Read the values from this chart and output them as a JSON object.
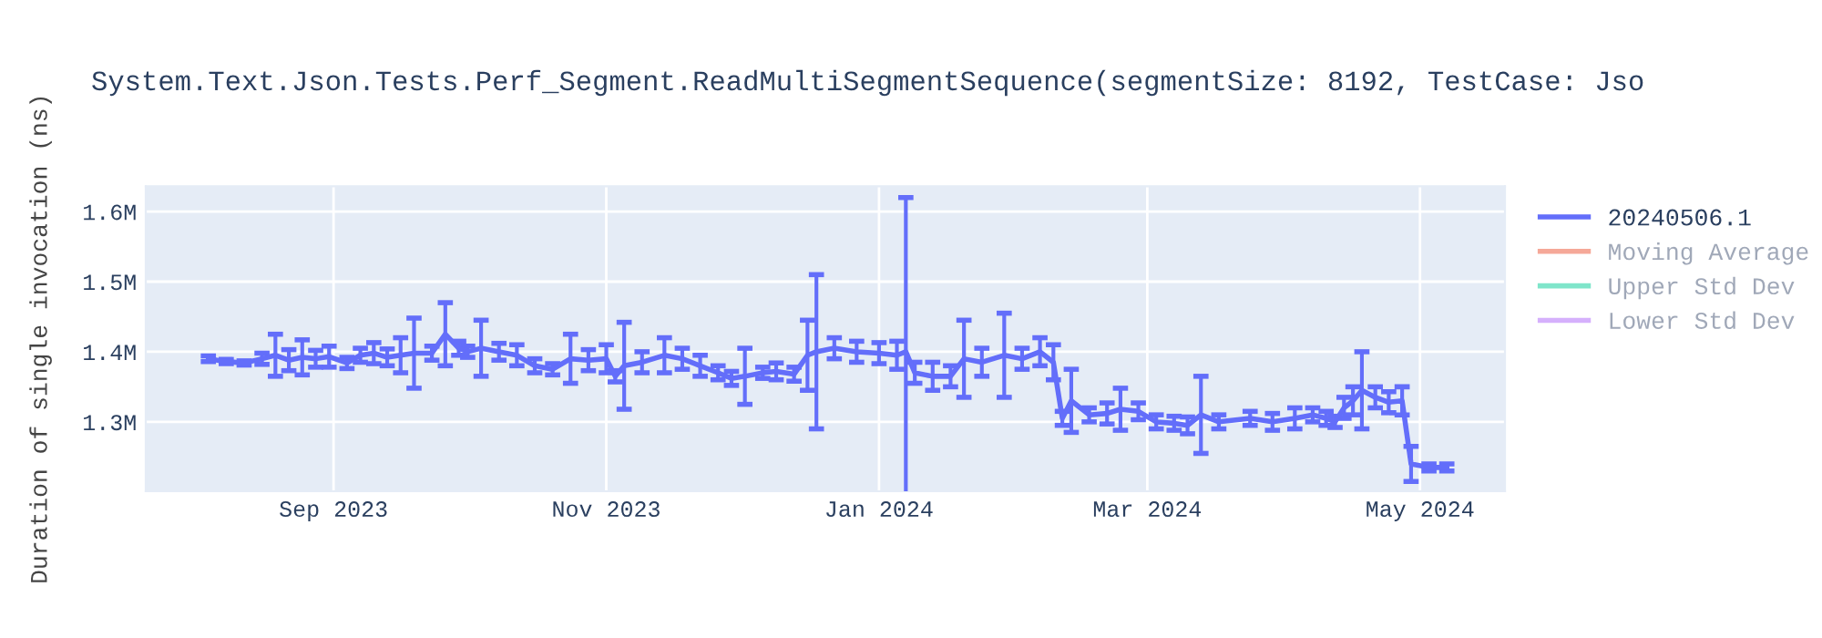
{
  "chart_data": {
    "type": "line",
    "title": "System.Text.Json.Tests.Perf_Segment.ReadMultiSegmentSequence(segmentSize: 8192, TestCase: Jso",
    "ylabel": "Duration of single invocation (ns)",
    "xlim": [
      "2023-07-21",
      "2024-05-20"
    ],
    "xticks": [
      {
        "value": "2023-09-01",
        "label": "Sep 2023"
      },
      {
        "value": "2023-11-01",
        "label": "Nov 2023"
      },
      {
        "value": "2024-01-01",
        "label": "Jan 2024"
      },
      {
        "value": "2024-03-01",
        "label": "Mar 2024"
      },
      {
        "value": "2024-05-01",
        "label": "May 2024"
      }
    ],
    "ylim": [
      1201000,
      1636000
    ],
    "yticks": [
      {
        "value": 1300000,
        "label": "1.3M"
      },
      {
        "value": 1400000,
        "label": "1.4M"
      },
      {
        "value": 1500000,
        "label": "1.5M"
      },
      {
        "value": 1600000,
        "label": "1.6M"
      }
    ],
    "grid": true,
    "legend": "right",
    "marker": "none",
    "line_style": "solid",
    "series": [
      {
        "name": "20240506.1",
        "color": "#636efa",
        "x": [
          "2023-08-04",
          "2023-08-08",
          "2023-08-12",
          "2023-08-16",
          "2023-08-19",
          "2023-08-22",
          "2023-08-25",
          "2023-08-28",
          "2023-08-31",
          "2023-09-04",
          "2023-09-07",
          "2023-09-10",
          "2023-09-13",
          "2023-09-16",
          "2023-09-19",
          "2023-09-23",
          "2023-09-26",
          "2023-09-29",
          "2023-10-01",
          "2023-10-04",
          "2023-10-08",
          "2023-10-12",
          "2023-10-16",
          "2023-10-20",
          "2023-10-24",
          "2023-10-28",
          "2023-11-01",
          "2023-11-03",
          "2023-11-05",
          "2023-11-09",
          "2023-11-14",
          "2023-11-18",
          "2023-11-22",
          "2023-11-26",
          "2023-11-29",
          "2023-12-02",
          "2023-12-06",
          "2023-12-09",
          "2023-12-13",
          "2023-12-16",
          "2023-12-18",
          "2023-12-22",
          "2023-12-27",
          "2024-01-01",
          "2024-01-05",
          "2024-01-07",
          "2024-01-09",
          "2024-01-13",
          "2024-01-17",
          "2024-01-20",
          "2024-01-24",
          "2024-01-29",
          "2024-02-02",
          "2024-02-06",
          "2024-02-09",
          "2024-02-11",
          "2024-02-13",
          "2024-02-17",
          "2024-02-21",
          "2024-02-24",
          "2024-02-28",
          "2024-03-03",
          "2024-03-07",
          "2024-03-10",
          "2024-03-13",
          "2024-03-17",
          "2024-03-24",
          "2024-03-29",
          "2024-04-03",
          "2024-04-07",
          "2024-04-10",
          "2024-04-12",
          "2024-04-14",
          "2024-04-16",
          "2024-04-18",
          "2024-04-21",
          "2024-04-24",
          "2024-04-27",
          "2024-04-29",
          "2024-05-03",
          "2024-05-07"
        ],
        "values": [
          1390000,
          1386000,
          1384000,
          1390000,
          1395000,
          1388000,
          1392000,
          1390000,
          1393000,
          1384000,
          1395000,
          1398000,
          1392000,
          1395000,
          1398000,
          1398000,
          1425000,
          1405000,
          1400000,
          1405000,
          1400000,
          1395000,
          1380000,
          1375000,
          1390000,
          1388000,
          1390000,
          1365000,
          1380000,
          1385000,
          1395000,
          1390000,
          1380000,
          1370000,
          1362000,
          1365000,
          1370000,
          1372000,
          1368000,
          1395000,
          1400000,
          1405000,
          1400000,
          1398000,
          1395000,
          1400000,
          1370000,
          1365000,
          1365000,
          1390000,
          1385000,
          1395000,
          1390000,
          1400000,
          1385000,
          1305000,
          1330000,
          1310000,
          1312000,
          1318000,
          1315000,
          1300000,
          1298000,
          1295000,
          1310000,
          1300000,
          1305000,
          1300000,
          1305000,
          1310000,
          1305000,
          1300000,
          1320000,
          1330000,
          1345000,
          1335000,
          1328000,
          1330000,
          1240000,
          1235000,
          1235000
        ],
        "errors": [
          4000,
          3000,
          3000,
          8000,
          30000,
          15000,
          25000,
          12000,
          15000,
          8000,
          10000,
          15000,
          12000,
          25000,
          50000,
          10000,
          45000,
          10000,
          8000,
          40000,
          12000,
          15000,
          10000,
          8000,
          35000,
          15000,
          20000,
          8000,
          62000,
          15000,
          25000,
          15000,
          15000,
          10000,
          10000,
          40000,
          8000,
          12000,
          10000,
          50000,
          110000,
          15000,
          15000,
          15000,
          20000,
          220000,
          15000,
          20000,
          15000,
          55000,
          20000,
          60000,
          15000,
          20000,
          25000,
          10000,
          45000,
          10000,
          15000,
          30000,
          12000,
          10000,
          10000,
          12000,
          55000,
          10000,
          10000,
          12000,
          15000,
          10000,
          10000,
          8000,
          15000,
          20000,
          55000,
          15000,
          15000,
          20000,
          25000,
          5000,
          5000
        ]
      },
      {
        "name": "Moving Average",
        "color": "#f5a898"
      },
      {
        "name": "Upper Std Dev",
        "color": "#7fe5ca"
      },
      {
        "name": "Lower Std Dev",
        "color": "#d5b0fc"
      }
    ]
  }
}
